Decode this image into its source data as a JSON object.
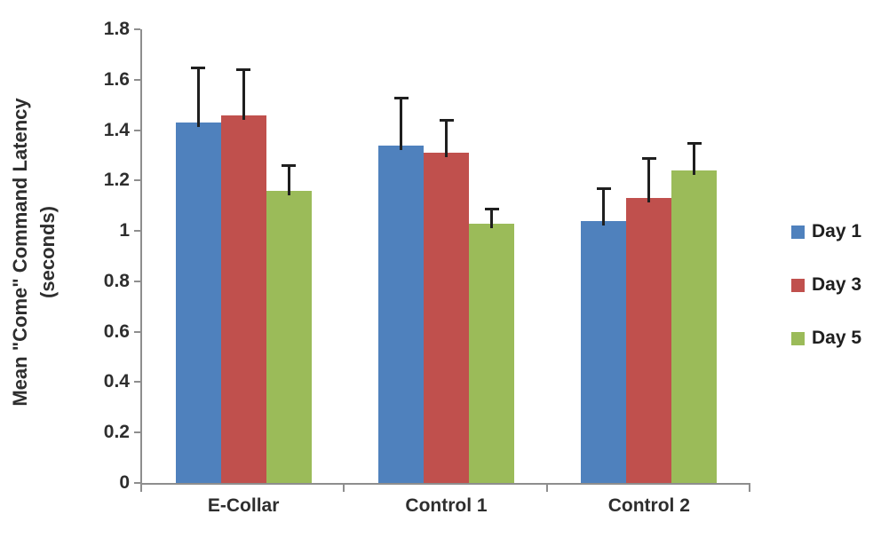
{
  "chart_data": {
    "type": "bar",
    "title": "",
    "ylabel_line1": "Mean \"Come\" Command Latency",
    "ylabel_line2": "(seconds)",
    "xlabel": "",
    "categories": [
      "E-Collar",
      "Control 1",
      "Control 2"
    ],
    "series": [
      {
        "name": "Day 1",
        "color": "#4F81BD",
        "values": [
          1.43,
          1.34,
          1.04
        ],
        "errors_up": [
          0.22,
          0.19,
          0.13
        ]
      },
      {
        "name": "Day 3",
        "color": "#C0504D",
        "values": [
          1.46,
          1.31,
          1.13
        ],
        "errors_up": [
          0.18,
          0.13,
          0.16
        ]
      },
      {
        "name": "Day 5",
        "color": "#9BBB59",
        "values": [
          1.16,
          1.03,
          1.24
        ],
        "errors_up": [
          0.1,
          0.06,
          0.11
        ]
      }
    ],
    "ylim": [
      0,
      1.8
    ],
    "ytick_step": 0.2,
    "ytick_labels": [
      "0",
      "0.2",
      "0.4",
      "0.6",
      "0.8",
      "1",
      "1.2",
      "1.4",
      "1.6",
      "1.8"
    ],
    "grid": false,
    "legend_position": "right",
    "error_bars": "upper-only",
    "axis_color": "#8E8E8E",
    "error_bar_color": "#1F1F1F",
    "text_color": "#2E2E2E",
    "background_color": "#FFFFFF"
  }
}
